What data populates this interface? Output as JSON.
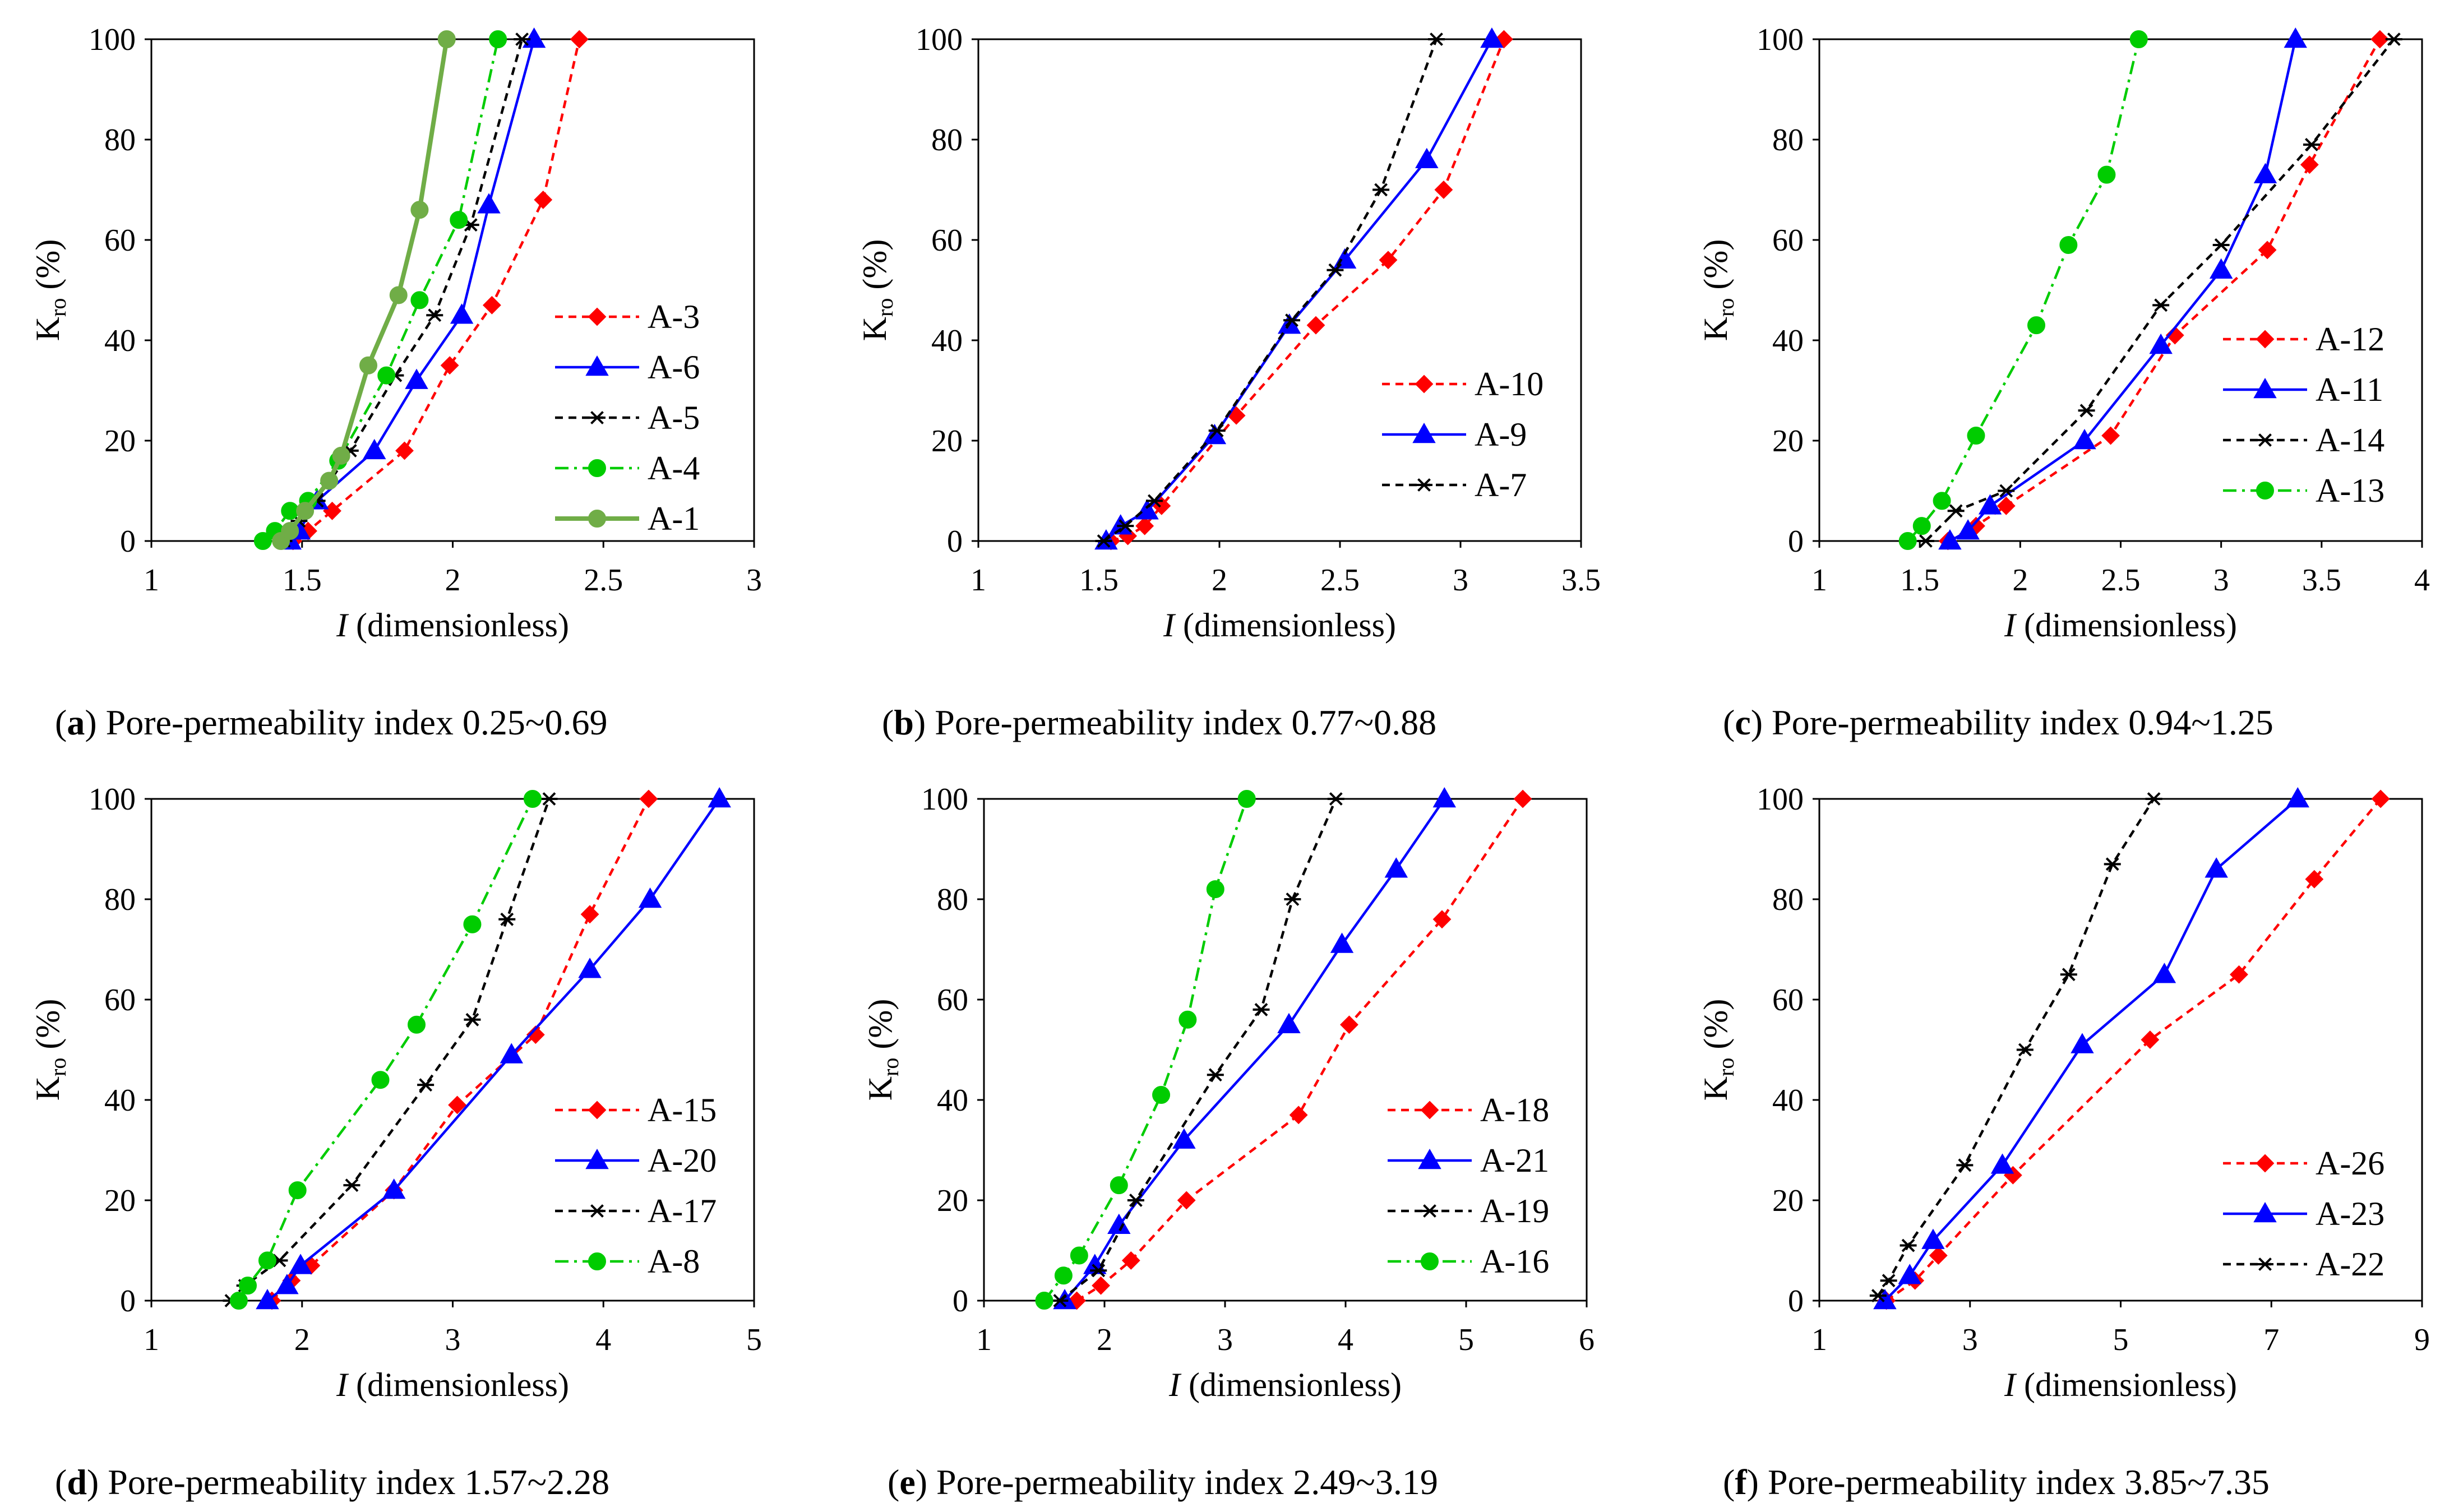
{
  "figure": {
    "x_label_symbol": "I",
    "x_label_text": " (dimensionless)",
    "y_label_base": "K",
    "y_label_sub": "ro",
    "y_label_unit": " (%)"
  },
  "colors": {
    "red": "#ff0000",
    "blue": "#0000ff",
    "black": "#000000",
    "green": "#00cc00",
    "olive": "#70ad47"
  },
  "chart_data": [
    {
      "type": "line",
      "panel_letter": "a",
      "caption_text": " Pore-permeability index 0.25~0.69",
      "xlabel": "I (dimensionless)",
      "ylabel": "Kro (%)",
      "xlim": [
        1,
        3
      ],
      "ylim": [
        0,
        100
      ],
      "xticks": [
        1,
        1.5,
        2,
        2.5,
        3
      ],
      "xticklabels": [
        "1",
        "1.5",
        "2",
        "2.5",
        "3"
      ],
      "yticks": [
        0,
        20,
        40,
        60,
        80,
        100
      ],
      "yticklabels": [
        "0",
        "20",
        "40",
        "60",
        "80",
        "100"
      ],
      "series": [
        {
          "name": "A-3",
          "color": "#ff0000",
          "marker": "diamond",
          "dash": "dashed",
          "x": [
            1.47,
            1.52,
            1.6,
            1.84,
            1.99,
            2.13,
            2.3,
            2.42
          ],
          "y": [
            0,
            2,
            6,
            18,
            35,
            47,
            68,
            100
          ]
        },
        {
          "name": "A-6",
          "color": "#0000ff",
          "marker": "triangle",
          "dash": "solid",
          "x": [
            1.46,
            1.49,
            1.55,
            1.74,
            1.88,
            2.03,
            2.12,
            2.27
          ],
          "y": [
            0,
            2,
            8,
            18,
            32,
            45,
            67,
            100
          ]
        },
        {
          "name": "A-5",
          "color": "#000000",
          "marker": "star",
          "dash": "dashed",
          "x": [
            1.44,
            1.49,
            1.55,
            1.66,
            1.81,
            1.94,
            2.06,
            2.23
          ],
          "y": [
            0,
            4,
            8,
            18,
            33,
            45,
            63,
            100
          ]
        },
        {
          "name": "A-4",
          "color": "#00cc00",
          "marker": "circle",
          "dash": "dashdot",
          "x": [
            1.37,
            1.41,
            1.46,
            1.52,
            1.62,
            1.78,
            1.89,
            2.02,
            2.15
          ],
          "y": [
            0,
            2,
            6,
            8,
            16,
            33,
            48,
            64,
            100
          ]
        },
        {
          "name": "A-1",
          "color": "#70ad47",
          "marker": "circle",
          "dash": "solid",
          "x": [
            1.43,
            1.46,
            1.51,
            1.59,
            1.63,
            1.72,
            1.82,
            1.89,
            1.98
          ],
          "y": [
            0,
            2,
            6,
            12,
            17,
            35,
            49,
            66,
            100
          ]
        }
      ]
    },
    {
      "type": "line",
      "panel_letter": "b",
      "caption_text": " Pore-permeability index 0.77~0.88",
      "xlabel": "I (dimensionless)",
      "ylabel": "Kro (%)",
      "xlim": [
        1,
        3.5
      ],
      "ylim": [
        0,
        100
      ],
      "xticks": [
        1,
        1.5,
        2,
        2.5,
        3,
        3.5
      ],
      "xticklabels": [
        "1",
        "1.5",
        "2",
        "2.5",
        "3",
        "3.5"
      ],
      "yticks": [
        0,
        20,
        40,
        60,
        80,
        100
      ],
      "yticklabels": [
        "0",
        "20",
        "40",
        "60",
        "80",
        "100"
      ],
      "series": [
        {
          "name": "A-10",
          "color": "#ff0000",
          "marker": "diamond",
          "dash": "dashed",
          "x": [
            1.55,
            1.62,
            1.69,
            1.76,
            2.07,
            2.4,
            2.7,
            2.93,
            3.18
          ],
          "y": [
            0,
            1,
            3,
            7,
            25,
            43,
            56,
            70,
            100
          ]
        },
        {
          "name": "A-9",
          "color": "#0000ff",
          "marker": "triangle",
          "dash": "solid",
          "x": [
            1.53,
            1.59,
            1.7,
            1.98,
            2.29,
            2.52,
            2.86,
            3.13
          ],
          "y": [
            0,
            3,
            6,
            21,
            43,
            56,
            76,
            100
          ]
        },
        {
          "name": "A-7",
          "color": "#000000",
          "marker": "star",
          "dash": "dashed",
          "x": [
            1.52,
            1.61,
            1.73,
            1.99,
            2.3,
            2.48,
            2.67,
            2.9
          ],
          "y": [
            0,
            3,
            8,
            22,
            44,
            54,
            70,
            100
          ]
        }
      ]
    },
    {
      "type": "line",
      "panel_letter": "c",
      "caption_text": " Pore-permeability index 0.94~1.25",
      "xlabel": "I (dimensionless)",
      "ylabel": "Kro (%)",
      "xlim": [
        1,
        4
      ],
      "ylim": [
        0,
        100
      ],
      "xticks": [
        1,
        1.5,
        2,
        2.5,
        3,
        3.5,
        4
      ],
      "xticklabels": [
        "1",
        "1.5",
        "2",
        "2.5",
        "3",
        "3.5",
        "4"
      ],
      "yticks": [
        0,
        20,
        40,
        60,
        80,
        100
      ],
      "yticklabels": [
        "0",
        "20",
        "40",
        "60",
        "80",
        "100"
      ],
      "series": [
        {
          "name": "A-12",
          "color": "#ff0000",
          "marker": "diamond",
          "dash": "dashed",
          "x": [
            1.64,
            1.78,
            1.93,
            2.45,
            2.77,
            3.23,
            3.44,
            3.79
          ],
          "y": [
            0,
            3,
            7,
            21,
            41,
            58,
            75,
            100
          ]
        },
        {
          "name": "A-11",
          "color": "#0000ff",
          "marker": "triangle",
          "dash": "solid",
          "x": [
            1.65,
            1.74,
            1.85,
            2.32,
            2.7,
            3.0,
            3.22,
            3.37
          ],
          "y": [
            0,
            2,
            7,
            20,
            39,
            54,
            73,
            100
          ]
        },
        {
          "name": "A-14",
          "color": "#000000",
          "marker": "star",
          "dash": "dashed",
          "x": [
            1.53,
            1.68,
            1.93,
            2.33,
            2.7,
            3.0,
            3.45,
            3.86
          ],
          "y": [
            0,
            6,
            10,
            26,
            47,
            59,
            79,
            100
          ]
        },
        {
          "name": "A-13",
          "color": "#00cc00",
          "marker": "circle",
          "dash": "dashdot",
          "x": [
            1.44,
            1.51,
            1.61,
            1.78,
            2.08,
            2.24,
            2.43,
            2.59
          ],
          "y": [
            0,
            3,
            8,
            21,
            43,
            59,
            73,
            100
          ]
        }
      ]
    },
    {
      "type": "line",
      "panel_letter": "d",
      "caption_text": " Pore-permeability index 1.57~2.28",
      "xlabel": "I (dimensionless)",
      "ylabel": "Kro (%)",
      "xlim": [
        1,
        5
      ],
      "ylim": [
        0,
        100
      ],
      "xticks": [
        1,
        2,
        3,
        4,
        5
      ],
      "xticklabels": [
        "1",
        "2",
        "3",
        "4",
        "5"
      ],
      "yticks": [
        0,
        20,
        40,
        60,
        80,
        100
      ],
      "yticklabels": [
        "0",
        "20",
        "40",
        "60",
        "80",
        "100"
      ],
      "series": [
        {
          "name": "A-15",
          "color": "#ff0000",
          "marker": "diamond",
          "dash": "dashed",
          "x": [
            1.8,
            1.93,
            2.06,
            2.61,
            3.03,
            3.55,
            3.91,
            4.3
          ],
          "y": [
            0,
            4,
            7,
            22,
            39,
            53,
            77,
            100
          ]
        },
        {
          "name": "A-20",
          "color": "#0000ff",
          "marker": "triangle",
          "dash": "solid",
          "x": [
            1.77,
            1.9,
            1.99,
            2.61,
            3.39,
            3.91,
            4.31,
            4.77
          ],
          "y": [
            0,
            3,
            7,
            22,
            49,
            66,
            80,
            100
          ]
        },
        {
          "name": "A-17",
          "color": "#000000",
          "marker": "star",
          "dash": "dashed",
          "x": [
            1.53,
            1.62,
            1.85,
            2.33,
            2.82,
            3.13,
            3.36,
            3.64
          ],
          "y": [
            0,
            3,
            8,
            23,
            43,
            56,
            76,
            100
          ]
        },
        {
          "name": "A-8",
          "color": "#00cc00",
          "marker": "circle",
          "dash": "dashdot",
          "x": [
            1.58,
            1.64,
            1.77,
            1.97,
            2.52,
            2.76,
            3.13,
            3.53
          ],
          "y": [
            0,
            3,
            8,
            22,
            44,
            55,
            75,
            100
          ]
        }
      ]
    },
    {
      "type": "line",
      "panel_letter": "e",
      "caption_text": " Pore-permeability index 2.49~3.19",
      "xlabel": "I (dimensionless)",
      "ylabel": "Kro (%)",
      "xlim": [
        1,
        6
      ],
      "ylim": [
        0,
        100
      ],
      "xticks": [
        1,
        2,
        3,
        4,
        5,
        6
      ],
      "xticklabels": [
        "1",
        "2",
        "3",
        "4",
        "5",
        "6"
      ],
      "yticks": [
        0,
        20,
        40,
        60,
        80,
        100
      ],
      "yticklabels": [
        "0",
        "20",
        "40",
        "60",
        "80",
        "100"
      ],
      "series": [
        {
          "name": "A-18",
          "color": "#ff0000",
          "marker": "diamond",
          "dash": "dashed",
          "x": [
            1.77,
            1.97,
            2.22,
            2.68,
            3.61,
            4.03,
            4.8,
            5.47
          ],
          "y": [
            0,
            3,
            8,
            20,
            37,
            55,
            76,
            100
          ]
        },
        {
          "name": "A-21",
          "color": "#0000ff",
          "marker": "triangle",
          "dash": "solid",
          "x": [
            1.67,
            1.92,
            2.12,
            2.66,
            3.53,
            3.97,
            4.42,
            4.82
          ],
          "y": [
            0,
            7,
            15,
            32,
            55,
            71,
            86,
            100
          ]
        },
        {
          "name": "A-19",
          "color": "#000000",
          "marker": "star",
          "dash": "dashed",
          "x": [
            1.63,
            1.95,
            2.26,
            2.92,
            3.3,
            3.56,
            3.92
          ],
          "y": [
            0,
            6,
            20,
            45,
            58,
            80,
            100
          ]
        },
        {
          "name": "A-16",
          "color": "#00cc00",
          "marker": "circle",
          "dash": "dashdot",
          "x": [
            1.5,
            1.66,
            1.79,
            2.12,
            2.47,
            2.69,
            2.92,
            3.18
          ],
          "y": [
            0,
            5,
            9,
            23,
            41,
            56,
            82,
            100
          ]
        }
      ]
    },
    {
      "type": "line",
      "panel_letter": "f",
      "caption_text": " Pore-permeability index 3.85~7.35",
      "xlabel": "I (dimensionless)",
      "ylabel": "Kro (%)",
      "xlim": [
        1,
        9
      ],
      "ylim": [
        0,
        100
      ],
      "xticks": [
        1,
        3,
        5,
        7,
        9
      ],
      "xticklabels": [
        "1",
        "3",
        "5",
        "7",
        "9"
      ],
      "yticks": [
        0,
        20,
        40,
        60,
        80,
        100
      ],
      "yticklabels": [
        "0",
        "20",
        "40",
        "60",
        "80",
        "100"
      ],
      "series": [
        {
          "name": "A-26",
          "color": "#ff0000",
          "marker": "diamond",
          "dash": "dashed",
          "x": [
            1.89,
            2.27,
            2.58,
            3.57,
            5.39,
            6.57,
            7.57,
            8.45
          ],
          "y": [
            0,
            4,
            9,
            25,
            52,
            65,
            84,
            100
          ]
        },
        {
          "name": "A-23",
          "color": "#0000ff",
          "marker": "triangle",
          "dash": "solid",
          "x": [
            1.87,
            2.2,
            2.51,
            3.43,
            4.49,
            5.58,
            6.27,
            7.35
          ],
          "y": [
            0,
            5,
            12,
            27,
            51,
            65,
            86,
            100
          ]
        },
        {
          "name": "A-22",
          "color": "#000000",
          "marker": "star",
          "dash": "dashed",
          "x": [
            1.78,
            1.92,
            2.18,
            2.93,
            3.73,
            4.31,
            4.89,
            5.44
          ],
          "y": [
            1,
            4,
            11,
            27,
            50,
            65,
            87,
            100
          ]
        }
      ]
    }
  ]
}
